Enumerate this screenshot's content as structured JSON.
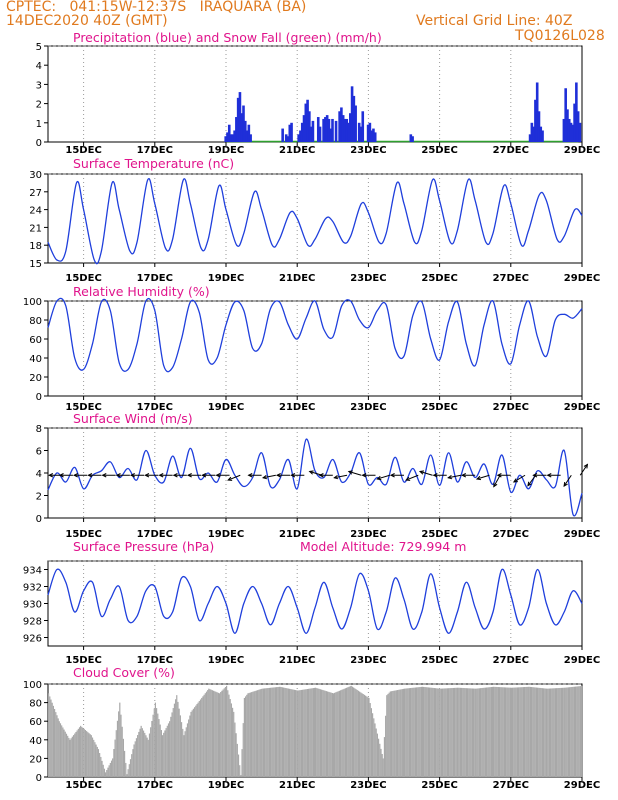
{
  "header": {
    "line1": "CPTEC:   041:15W-12:37S   IRAQUARA (BA)",
    "line2": "14DEC2020 40Z (GMT)",
    "right1": "Vertical Grid Line: 40Z",
    "right2": "TQ0126L028"
  },
  "x_ticks": [
    "15DEC",
    "17DEC",
    "19DEC",
    "21DEC",
    "23DEC",
    "25DEC",
    "27DEC",
    "29DEC"
  ],
  "colors": {
    "header": "#e07a1f",
    "title": "#e0148c",
    "line": "#1f3fdc",
    "precip": "#1f2fd8",
    "snow": "#2ea02e",
    "cloud": "#a8a8a8",
    "grid": "#9a9a9a"
  },
  "chart_data": [
    {
      "type": "bar",
      "title": "Precipitation (blue) and Snow Fall (green) (mm/h)",
      "ylim": [
        0,
        5
      ],
      "yticks": [
        0,
        1,
        2,
        3,
        4,
        5
      ],
      "series": [
        {
          "name": "Precipitation",
          "x": [
            19.0,
            19.05,
            19.1,
            19.15,
            19.2,
            19.25,
            19.3,
            19.35,
            19.4,
            19.45,
            19.5,
            19.55,
            19.6,
            19.65,
            19.7,
            20.6,
            20.7,
            20.75,
            20.8,
            20.85,
            21.05,
            21.1,
            21.15,
            21.2,
            21.25,
            21.3,
            21.35,
            21.4,
            21.45,
            21.6,
            21.65,
            21.75,
            21.8,
            21.85,
            21.9,
            21.95,
            22.0,
            22.1,
            22.2,
            22.25,
            22.3,
            22.35,
            22.4,
            22.45,
            22.5,
            22.55,
            22.6,
            22.65,
            22.75,
            22.8,
            22.85,
            23.0,
            23.05,
            23.1,
            23.15,
            23.2,
            24.2,
            24.25,
            27.55,
            27.6,
            27.65,
            27.7,
            27.75,
            27.8,
            27.85,
            27.9,
            28.5,
            28.55,
            28.6,
            28.65,
            28.7,
            28.75,
            28.8,
            28.85,
            28.9,
            28.95
          ],
          "values": [
            0.3,
            0.5,
            0.9,
            0.4,
            0.4,
            0.6,
            1.3,
            2.3,
            2.6,
            1.5,
            1.9,
            1.1,
            0.6,
            0.9,
            0.4,
            0.7,
            0.4,
            0.3,
            0.9,
            1.0,
            0.4,
            0.6,
            1.0,
            1.4,
            2.0,
            2.2,
            1.6,
            0.8,
            1.1,
            1.3,
            0.8,
            1.2,
            1.3,
            1.4,
            1.2,
            0.7,
            1.2,
            1.1,
            1.6,
            1.8,
            1.4,
            1.2,
            1.2,
            1.0,
            1.5,
            2.9,
            2.4,
            1.9,
            1.0,
            0.8,
            1.6,
            0.9,
            1.0,
            0.6,
            0.7,
            0.5,
            0.4,
            0.3,
            0.4,
            1.0,
            0.8,
            2.2,
            3.1,
            1.6,
            0.8,
            0.6,
            1.2,
            2.8,
            1.7,
            1.2,
            1.0,
            0.9,
            2.0,
            3.1,
            1.6,
            1.0
          ]
        },
        {
          "name": "Snow Fall",
          "values": [
            0
          ]
        }
      ]
    },
    {
      "type": "line",
      "title": "Surface Temperature (nC)",
      "ylim": [
        15,
        30
      ],
      "yticks": [
        15,
        18,
        21,
        24,
        27,
        30
      ],
      "series": [
        {
          "name": "Temperature",
          "x": [
            14.0,
            14.25,
            14.5,
            14.8,
            15.0,
            15.3,
            15.5,
            15.8,
            16.0,
            16.3,
            16.5,
            16.8,
            17.0,
            17.3,
            17.5,
            17.8,
            18.0,
            18.3,
            18.5,
            18.8,
            19.0,
            19.3,
            19.5,
            19.8,
            20.0,
            20.3,
            20.5,
            20.8,
            21.0,
            21.3,
            21.5,
            21.8,
            22.0,
            22.3,
            22.5,
            22.8,
            23.0,
            23.3,
            23.5,
            23.8,
            24.0,
            24.3,
            24.5,
            24.8,
            25.0,
            25.3,
            25.5,
            25.8,
            26.0,
            26.3,
            26.5,
            26.8,
            27.0,
            27.3,
            27.5,
            27.8,
            28.0,
            28.3,
            28.5,
            28.8,
            29.0
          ],
          "values": [
            18.5,
            15.5,
            17.0,
            28.5,
            24.0,
            15.5,
            17.0,
            28.5,
            24.0,
            17.0,
            18.5,
            29.0,
            25.0,
            17.5,
            19.0,
            29.0,
            25.0,
            17.5,
            19.0,
            28.0,
            24.0,
            18.0,
            20.0,
            27.0,
            24.0,
            18.0,
            19.0,
            23.5,
            22.5,
            18.0,
            19.0,
            22.5,
            22.0,
            18.5,
            19.5,
            25.0,
            23.5,
            18.5,
            20.0,
            28.5,
            25.0,
            18.5,
            20.5,
            29.0,
            25.5,
            18.5,
            20.5,
            29.0,
            25.5,
            18.5,
            20.0,
            28.0,
            25.0,
            18.0,
            20.5,
            26.5,
            25.5,
            19.0,
            19.5,
            24.0,
            23.0
          ]
        }
      ]
    },
    {
      "type": "line",
      "title": "Relative Humidity (%)",
      "ylim": [
        0,
        100
      ],
      "yticks": [
        0,
        20,
        40,
        60,
        80,
        100
      ],
      "series": [
        {
          "name": "Relative Humidity",
          "x": [
            14.0,
            14.25,
            14.5,
            14.75,
            15.0,
            15.25,
            15.5,
            15.75,
            16.0,
            16.25,
            16.5,
            16.75,
            17.0,
            17.25,
            17.5,
            17.75,
            18.0,
            18.25,
            18.5,
            18.75,
            19.0,
            19.25,
            19.5,
            19.75,
            20.0,
            20.25,
            20.5,
            20.75,
            21.0,
            21.25,
            21.5,
            21.75,
            22.0,
            22.25,
            22.5,
            22.75,
            23.0,
            23.25,
            23.5,
            23.75,
            24.0,
            24.25,
            24.5,
            24.75,
            25.0,
            25.25,
            25.5,
            25.75,
            26.0,
            26.25,
            26.5,
            26.75,
            27.0,
            27.25,
            27.5,
            27.75,
            28.0,
            28.25,
            28.5,
            28.75,
            29.0
          ],
          "values": [
            72,
            100,
            95,
            40,
            28,
            55,
            99,
            90,
            35,
            28,
            55,
            100,
            90,
            32,
            30,
            60,
            99,
            88,
            38,
            40,
            75,
            99,
            90,
            50,
            55,
            92,
            99,
            75,
            60,
            82,
            100,
            70,
            62,
            95,
            100,
            80,
            72,
            90,
            96,
            50,
            42,
            85,
            99,
            60,
            38,
            78,
            99,
            55,
            32,
            75,
            100,
            55,
            34,
            75,
            100,
            62,
            42,
            80,
            86,
            82,
            92
          ]
        }
      ]
    },
    {
      "type": "line",
      "title": "Surface Wind (m/s)",
      "ylim": [
        0,
        8
      ],
      "yticks": [
        0,
        2,
        4,
        6,
        8
      ],
      "series": [
        {
          "name": "Wind speed",
          "x": [
            14.0,
            14.25,
            14.5,
            14.75,
            15.0,
            15.25,
            15.5,
            15.75,
            16.0,
            16.25,
            16.5,
            16.75,
            17.0,
            17.25,
            17.5,
            17.75,
            18.0,
            18.25,
            18.5,
            18.75,
            19.0,
            19.25,
            19.5,
            19.75,
            20.0,
            20.25,
            20.5,
            20.75,
            21.0,
            21.25,
            21.5,
            21.75,
            22.0,
            22.25,
            22.5,
            22.75,
            23.0,
            23.25,
            23.5,
            23.75,
            24.0,
            24.25,
            24.5,
            24.75,
            25.0,
            25.25,
            25.5,
            25.75,
            26.0,
            26.25,
            26.5,
            26.75,
            27.0,
            27.25,
            27.5,
            27.75,
            28.0,
            28.25,
            28.5,
            28.75,
            29.0
          ],
          "values": [
            2.5,
            4.0,
            3.2,
            4.5,
            2.6,
            3.8,
            4.2,
            5.0,
            3.6,
            4.4,
            3.4,
            6.0,
            3.8,
            3.2,
            5.5,
            3.6,
            6.2,
            3.5,
            4.0,
            3.2,
            5.2,
            3.8,
            2.8,
            3.6,
            5.8,
            2.8,
            3.4,
            5.2,
            2.6,
            7.0,
            4.2,
            3.6,
            5.2,
            3.2,
            4.0,
            5.8,
            3.0,
            3.6,
            3.0,
            5.4,
            3.2,
            4.4,
            3.0,
            5.6,
            2.9,
            5.8,
            3.2,
            5.0,
            3.6,
            4.8,
            3.0,
            5.6,
            2.3,
            3.8,
            2.6,
            4.2,
            3.4,
            2.8,
            6.0,
            0.3,
            2.2
          ]
        }
      ],
      "vectors": {
        "x": [
          14.4,
          14.7,
          15.1,
          15.5,
          15.9,
          16.3,
          16.7,
          17.1,
          17.5,
          17.9,
          18.3,
          18.7,
          19.1,
          19.4,
          20.0,
          20.4,
          20.8,
          21.2,
          21.7,
          22.0,
          22.4,
          22.8,
          23.2,
          23.6,
          24.0,
          24.4,
          24.8,
          25.2,
          25.6,
          26.0,
          26.4,
          26.7,
          27.0,
          27.4,
          27.7,
          28.0,
          28.4,
          28.7,
          28.95
        ],
        "u": [
          -1,
          -1,
          -1,
          -1,
          -1,
          -1,
          -1,
          -1,
          -1,
          -1,
          -1,
          -1,
          -1,
          -1,
          -1,
          -1,
          -1,
          -1,
          -1,
          -1,
          -1,
          -1,
          -1,
          -1,
          -1,
          -1,
          -1,
          -1,
          -1,
          -1,
          -1,
          -0.5,
          -0.6,
          -1,
          -0.6,
          -0.8,
          -1,
          -0.6,
          0.4
        ],
        "v": [
          0,
          0,
          0,
          0,
          0,
          0,
          0,
          0,
          0,
          0,
          0,
          0,
          0,
          -0.4,
          0,
          -0.2,
          0,
          0,
          0.3,
          0,
          -0.2,
          0.3,
          0,
          -0.3,
          0,
          -0.4,
          0.3,
          0,
          -0.2,
          0,
          -0.3,
          -0.9,
          0,
          -0.6,
          -0.8,
          0,
          0,
          -0.9,
          0.6
        ]
      }
    },
    {
      "type": "line",
      "title": "Surface Pressure (hPa)",
      "annotation": "Model Altitude: 729.994 m",
      "ylim": [
        925,
        935
      ],
      "yticks": [
        926,
        928,
        930,
        932,
        934
      ],
      "series": [
        {
          "name": "Surface Pressure",
          "x": [
            14.0,
            14.25,
            14.5,
            14.75,
            15.0,
            15.25,
            15.5,
            15.75,
            16.0,
            16.25,
            16.5,
            16.75,
            17.0,
            17.25,
            17.5,
            17.75,
            18.0,
            18.25,
            18.5,
            18.75,
            19.0,
            19.25,
            19.5,
            19.75,
            20.0,
            20.25,
            20.5,
            20.75,
            21.0,
            21.25,
            21.5,
            21.75,
            22.0,
            22.25,
            22.5,
            22.75,
            23.0,
            23.25,
            23.5,
            23.75,
            24.0,
            24.25,
            24.5,
            24.75,
            25.0,
            25.25,
            25.5,
            25.75,
            26.0,
            26.25,
            26.5,
            26.75,
            27.0,
            27.25,
            27.5,
            27.75,
            28.0,
            28.25,
            28.5,
            28.75,
            29.0
          ],
          "values": [
            931.0,
            934.0,
            932.5,
            929.0,
            931.5,
            932.5,
            928.5,
            930.5,
            932.0,
            928.0,
            928.5,
            931.5,
            932.0,
            928.5,
            929.0,
            933.0,
            932.0,
            928.0,
            930.0,
            932.0,
            930.0,
            926.5,
            930.0,
            932.0,
            930.0,
            927.5,
            930.0,
            932.0,
            929.5,
            926.5,
            929.5,
            932.5,
            929.5,
            927.0,
            929.5,
            933.5,
            931.5,
            927.0,
            929.0,
            933.0,
            930.5,
            927.0,
            929.0,
            933.5,
            929.5,
            926.5,
            929.0,
            932.5,
            929.5,
            927.0,
            929.0,
            934.0,
            931.0,
            927.5,
            929.5,
            934.0,
            930.0,
            927.5,
            929.0,
            931.5,
            930.0
          ]
        }
      ]
    },
    {
      "type": "area",
      "title": "Cloud Cover (%)",
      "ylim": [
        0,
        100
      ],
      "yticks": [
        0,
        20,
        40,
        60,
        80,
        100
      ],
      "series": [
        {
          "name": "Cloud Cover",
          "x": [
            14.0,
            14.3,
            14.6,
            14.9,
            15.2,
            15.4,
            15.6,
            15.8,
            16.0,
            16.2,
            16.4,
            16.6,
            16.8,
            17.0,
            17.2,
            17.4,
            17.6,
            17.8,
            18.0,
            18.2,
            18.5,
            18.8,
            19.0,
            19.2,
            19.4,
            19.5,
            19.6,
            20.0,
            20.5,
            21.0,
            21.5,
            22.0,
            22.5,
            23.0,
            23.4,
            23.5,
            23.6,
            24.0,
            24.5,
            25.0,
            25.5,
            26.0,
            26.5,
            27.0,
            27.5,
            28.0,
            28.5,
            29.0
          ],
          "values": [
            90,
            60,
            40,
            55,
            45,
            30,
            5,
            20,
            80,
            3,
            35,
            55,
            40,
            80,
            45,
            60,
            88,
            45,
            70,
            80,
            95,
            90,
            98,
            70,
            2,
            85,
            90,
            95,
            97,
            93,
            96,
            90,
            98,
            85,
            20,
            88,
            92,
            95,
            97,
            95,
            96,
            95,
            97,
            96,
            97,
            95,
            96,
            98
          ]
        }
      ]
    }
  ]
}
